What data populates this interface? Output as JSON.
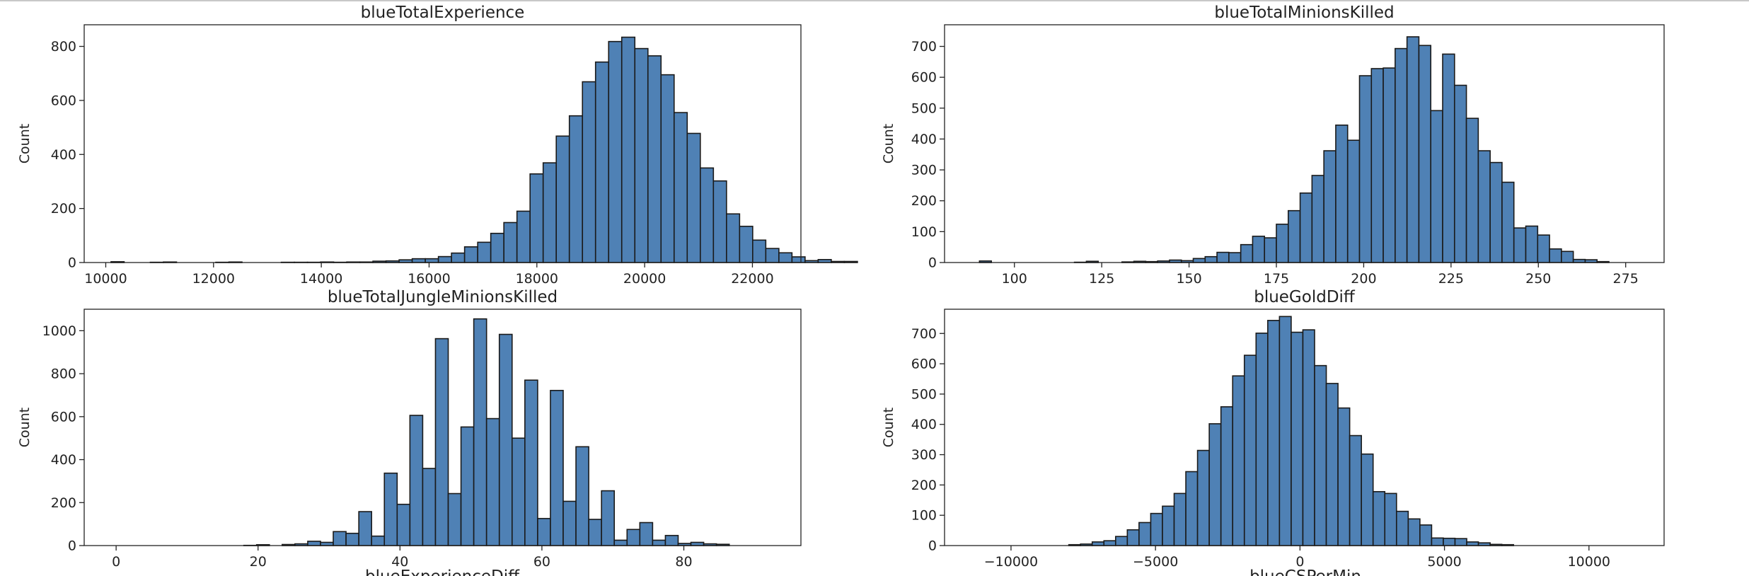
{
  "page": {
    "bottom_cut_labels": [
      "blueExperienceDiff",
      "blueCSPerMin"
    ]
  },
  "colors": {
    "bar_fill": "#4f81b5",
    "bar_edge": "#1a1a1a",
    "axis": "#222222",
    "background": "#ffffff"
  },
  "chart_data": [
    {
      "type": "bar",
      "title": "blueTotalExperience",
      "xlabel": "",
      "ylabel": "Count",
      "xlim": [
        9600,
        22900
      ],
      "ylim": [
        0,
        880
      ],
      "xticks": [
        10000,
        12000,
        14000,
        16000,
        18000,
        20000,
        22000
      ],
      "yticks": [
        0,
        200,
        400,
        600,
        800
      ],
      "bin_start": 10098,
      "bin_width": 243,
      "values": [
        3,
        0,
        0,
        1,
        2,
        0,
        0,
        0,
        1,
        2,
        0,
        0,
        0,
        1,
        1,
        1,
        2,
        1,
        2,
        2,
        5,
        6,
        10,
        14,
        14,
        22,
        35,
        58,
        75,
        108,
        148,
        190,
        328,
        369,
        468,
        543,
        669,
        742,
        818,
        834,
        792,
        765,
        695,
        555,
        478,
        350,
        302,
        180,
        134,
        83,
        52,
        36,
        21,
        7,
        11,
        4,
        4
      ]
    },
    {
      "type": "bar",
      "title": "blueTotalMinionsKilled",
      "xlabel": "",
      "ylabel": "Count",
      "xlim": [
        80,
        286
      ],
      "ylim": [
        0,
        770
      ],
      "xticks": [
        100,
        125,
        150,
        175,
        200,
        225,
        250,
        275
      ],
      "yticks": [
        0,
        100,
        200,
        300,
        400,
        500,
        600,
        700
      ],
      "bin_start": 90,
      "bin_width": 3.4,
      "values": [
        5,
        0,
        0,
        0,
        0,
        0,
        0,
        0,
        1,
        4,
        0,
        0,
        2,
        4,
        3,
        5,
        8,
        6,
        13,
        19,
        33,
        32,
        58,
        85,
        80,
        124,
        168,
        225,
        282,
        362,
        445,
        396,
        605,
        628,
        630,
        693,
        731,
        703,
        492,
        675,
        574,
        467,
        362,
        324,
        260,
        112,
        118,
        89,
        44,
        36,
        10,
        9,
        3
      ]
    },
    {
      "type": "bar",
      "title": "blueTotalJungleMinionsKilled",
      "xlabel": "",
      "ylabel": "Count",
      "xlim": [
        -4.5,
        96.5
      ],
      "ylim": [
        0,
        1100
      ],
      "xticks": [
        0,
        20,
        40,
        60,
        80
      ],
      "yticks": [
        0,
        200,
        400,
        600,
        800,
        1000
      ],
      "bin_start": 0,
      "bin_width": 1.8,
      "values": [
        0,
        0,
        0,
        0,
        0,
        0,
        0,
        0,
        0,
        0,
        1,
        4,
        0,
        5,
        8,
        20,
        15,
        65,
        57,
        158,
        44,
        337,
        192,
        606,
        359,
        963,
        242,
        552,
        1055,
        591,
        983,
        500,
        770,
        126,
        722,
        206,
        460,
        122,
        255,
        25,
        75,
        107,
        25,
        47,
        10,
        15,
        8,
        6
      ]
    },
    {
      "type": "bar",
      "title": "blueGoldDiff",
      "xlabel": "",
      "ylabel": "Count",
      "xlim": [
        -12300,
        12600
      ],
      "ylim": [
        0,
        780
      ],
      "xticks": [
        -10000,
        -5000,
        0,
        5000,
        10000
      ],
      "yticks": [
        0,
        100,
        200,
        300,
        400,
        500,
        600,
        700
      ],
      "bin_start": -8000,
      "bin_width": 405,
      "values": [
        3,
        5,
        12,
        16,
        30,
        52,
        76,
        106,
        130,
        172,
        244,
        314,
        402,
        458,
        560,
        628,
        701,
        743,
        756,
        704,
        712,
        594,
        535,
        454,
        363,
        302,
        178,
        172,
        113,
        88,
        68,
        25,
        24,
        23,
        12,
        9,
        4,
        3
      ]
    }
  ]
}
